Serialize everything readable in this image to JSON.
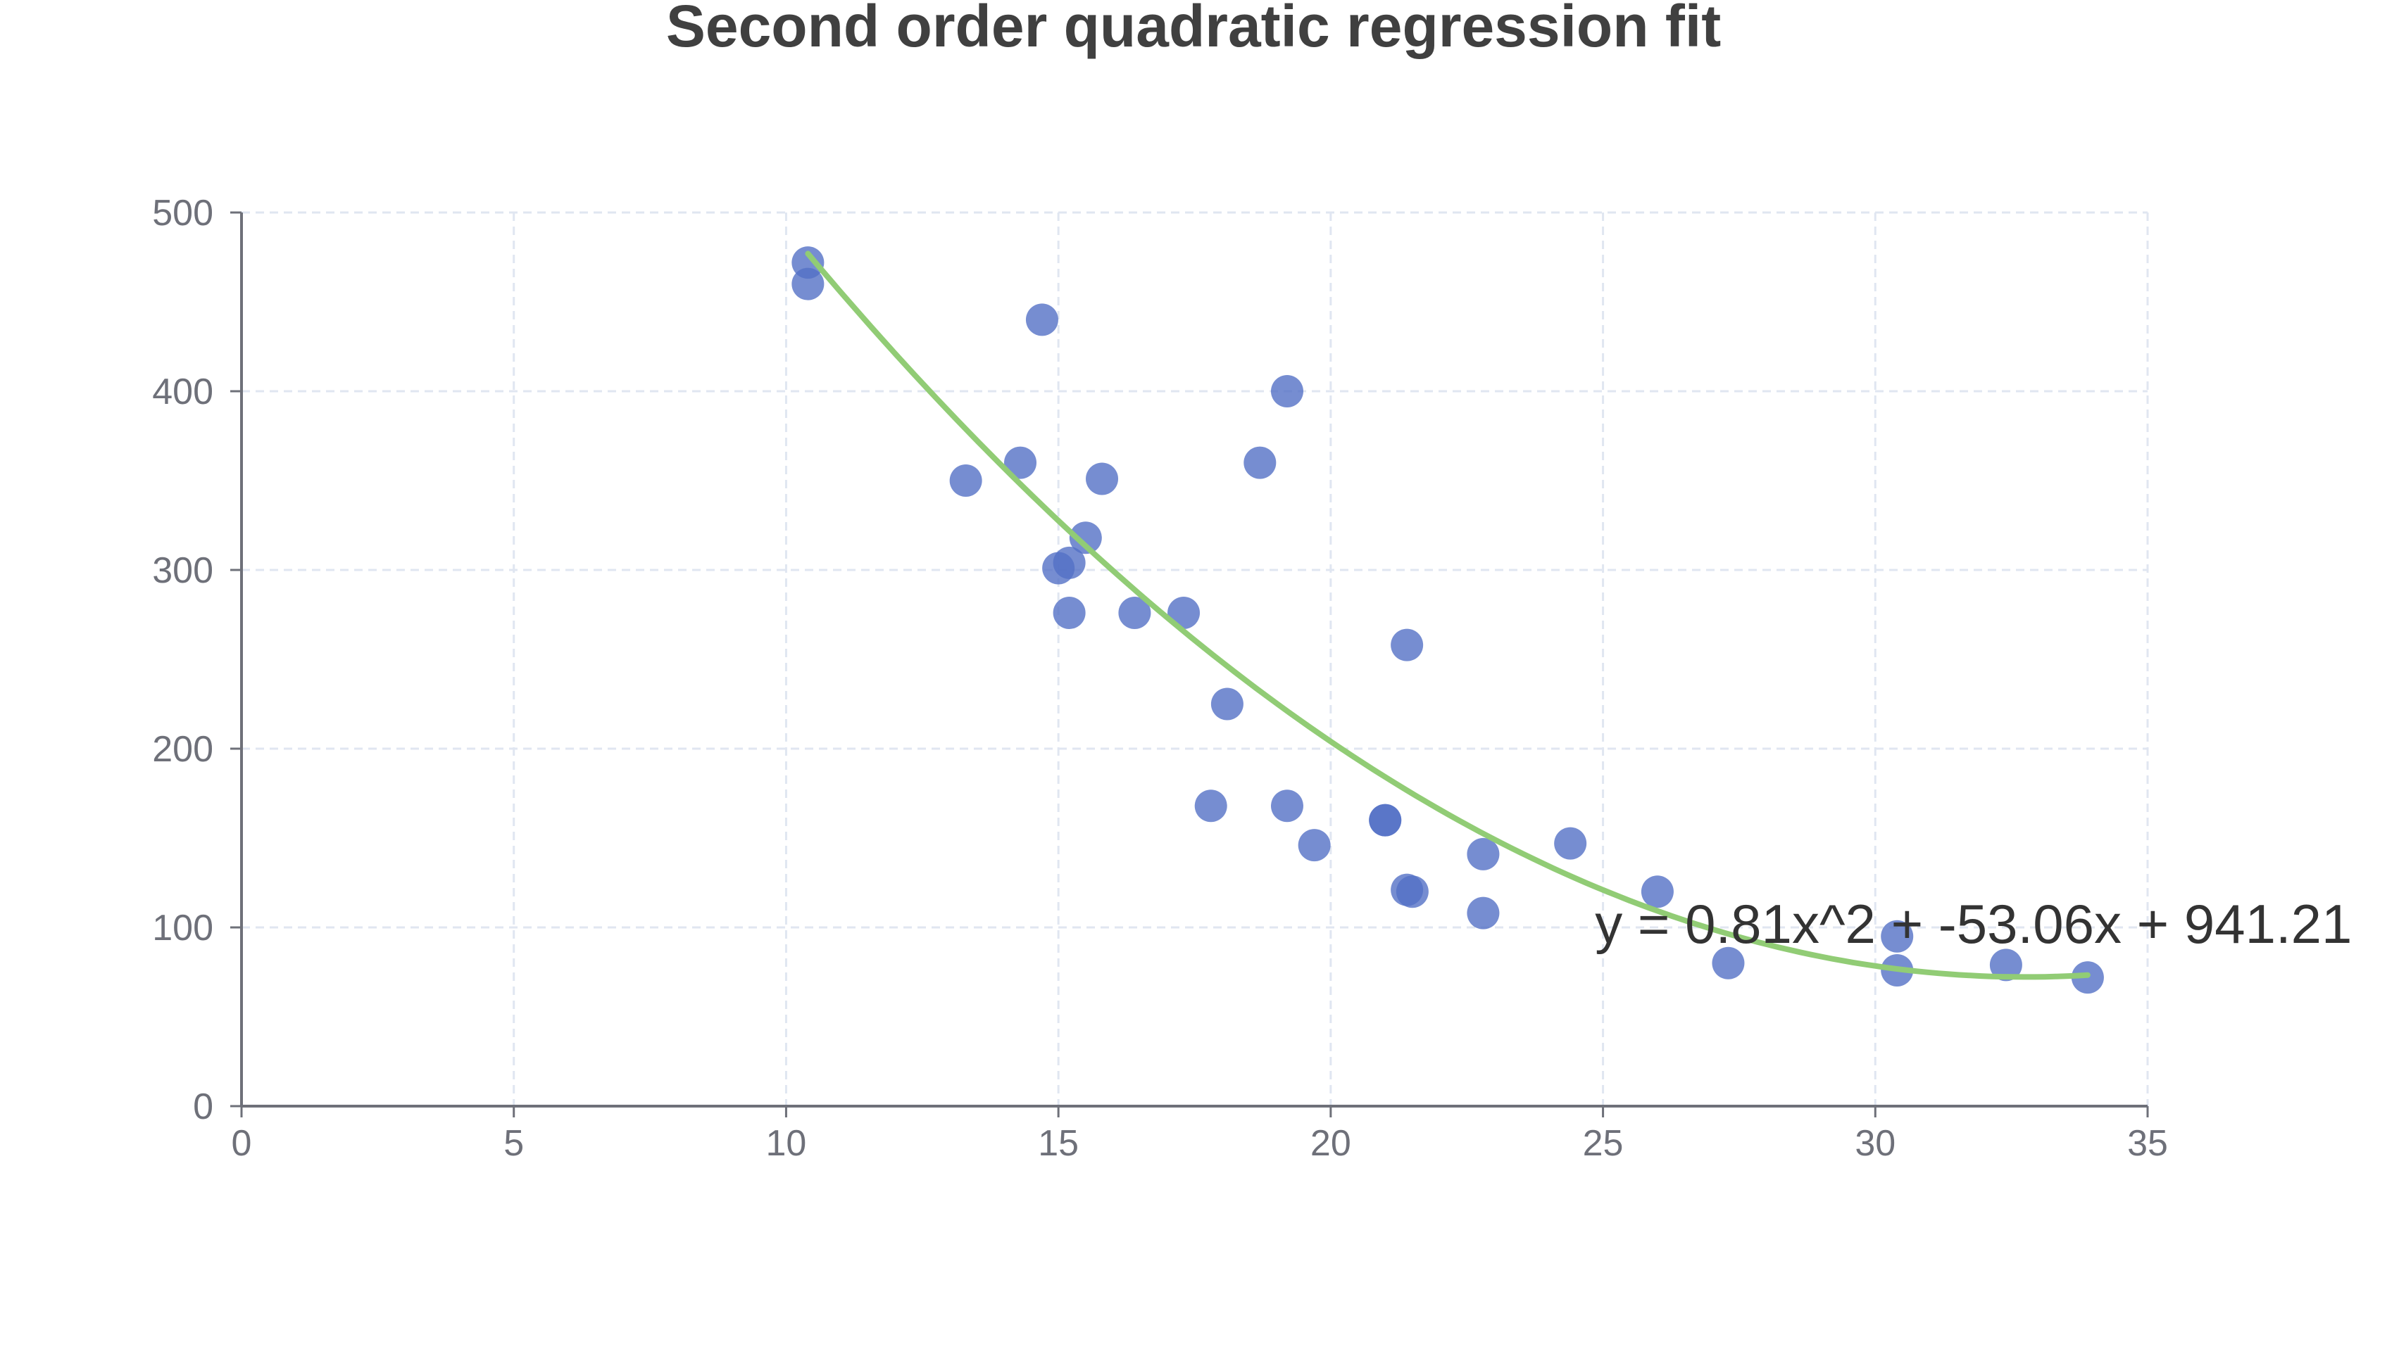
{
  "chart_data": {
    "type": "scatter",
    "title": "Second order quadratic regression fit",
    "xlabel": "",
    "ylabel": "",
    "xlim": [
      0,
      35
    ],
    "ylim": [
      0,
      500
    ],
    "x_ticks": [
      "0",
      "5",
      "10",
      "15",
      "20",
      "25",
      "30",
      "35"
    ],
    "y_ticks": [
      "0",
      "100",
      "200",
      "300",
      "400",
      "500"
    ],
    "grid": true,
    "legend": "none",
    "series": [
      {
        "type": "scatter",
        "color": "#5470c6",
        "points": [
          [
            10.4,
            472
          ],
          [
            10.4,
            460
          ],
          [
            14.7,
            440
          ],
          [
            19.2,
            400
          ],
          [
            13.3,
            350
          ],
          [
            14.3,
            360
          ],
          [
            15.8,
            351
          ],
          [
            18.7,
            360
          ],
          [
            15.5,
            318
          ],
          [
            15.2,
            304
          ],
          [
            15.0,
            301
          ],
          [
            15.2,
            276
          ],
          [
            16.4,
            276
          ],
          [
            17.3,
            276
          ],
          [
            21.4,
            258
          ],
          [
            18.1,
            225
          ],
          [
            17.8,
            168
          ],
          [
            19.2,
            168
          ],
          [
            19.7,
            146
          ],
          [
            21.0,
            160
          ],
          [
            21.0,
            160
          ],
          [
            21.4,
            121
          ],
          [
            21.5,
            120
          ],
          [
            22.8,
            141
          ],
          [
            22.8,
            108
          ],
          [
            24.4,
            147
          ],
          [
            26.0,
            120
          ],
          [
            27.3,
            80
          ],
          [
            30.4,
            95
          ],
          [
            30.4,
            76
          ],
          [
            32.4,
            79
          ],
          [
            33.9,
            72
          ]
        ]
      },
      {
        "type": "line",
        "name": "y = 0.81x^2 + -53.06x + 941.21",
        "color": "#91cc75",
        "coefficients": {
          "a": 0.81,
          "b": -53.06,
          "c": 941.21
        },
        "x_range": [
          10.4,
          33.9
        ]
      }
    ],
    "annotations": [
      {
        "text": "y = 0.81x^2 + -53.06x + 941.21",
        "x": 25.5,
        "y": 100
      }
    ]
  }
}
